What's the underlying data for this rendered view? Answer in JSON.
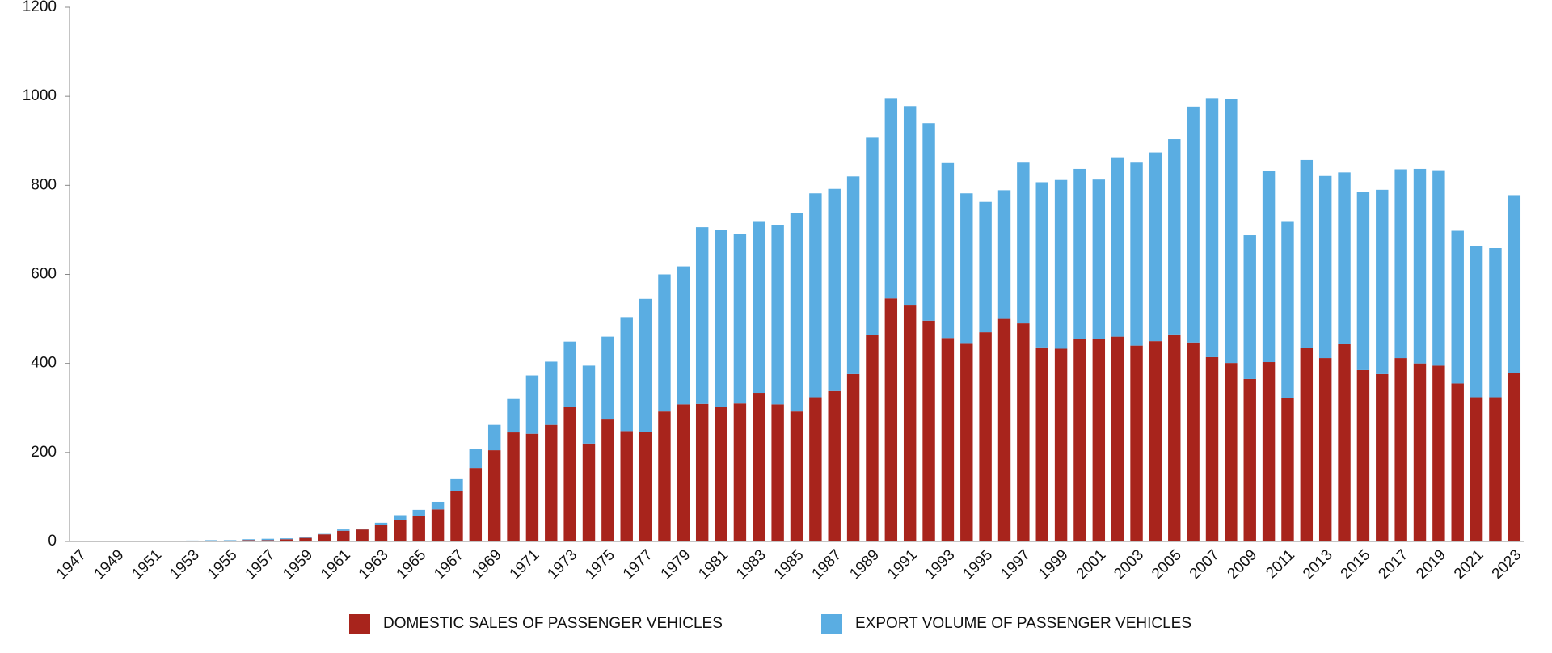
{
  "chart_data": {
    "type": "stacked_bar",
    "categories": [
      "1947",
      null,
      "1949",
      null,
      "1951",
      null,
      "1953",
      null,
      "1955",
      null,
      "1957",
      null,
      "1959",
      null,
      "1961",
      null,
      "1963",
      null,
      "1965",
      null,
      "1967",
      null,
      "1969",
      null,
      "1971",
      null,
      "1973",
      null,
      "1975",
      null,
      "1977",
      null,
      "1979",
      null,
      "1981",
      null,
      "1983",
      null,
      "1985",
      null,
      "1987",
      null,
      "1989",
      null,
      "1991",
      null,
      "1993",
      null,
      "1995",
      null,
      "1997",
      null,
      "1999",
      null,
      "2001",
      null,
      "2003",
      null,
      "2005",
      null,
      "2007",
      null,
      "2009",
      null,
      "2011",
      null,
      "2013",
      null,
      "2015",
      null,
      "2017",
      null,
      "2019",
      null,
      "2021",
      null,
      "2023"
    ],
    "series": [
      {
        "name": "DOMESTIC SALES OF PASSENGER VEHICLES",
        "color": "#a8241c",
        "values": [
          0.3,
          0.5,
          1,
          1,
          1,
          1,
          1,
          2,
          2,
          3,
          3,
          5,
          8,
          16,
          24,
          27,
          37,
          48,
          58,
          72,
          113,
          165,
          205,
          245,
          242,
          262,
          302,
          220,
          274,
          248,
          246,
          292,
          308,
          309,
          302,
          310,
          334,
          308,
          292,
          324,
          338,
          376,
          464,
          546,
          530,
          496,
          457,
          444,
          470,
          500,
          490,
          436,
          433,
          455,
          454,
          460,
          440,
          450,
          465,
          447,
          414,
          401,
          365,
          403,
          323,
          435,
          412,
          443,
          385,
          376,
          412,
          400,
          395,
          355,
          324,
          324,
          378
        ]
      },
      {
        "name": "EXPORT VOLUME OF PASSENGER VEHICLES",
        "color": "#5aade2",
        "values": [
          0,
          0,
          0,
          0,
          0,
          0,
          1,
          1,
          1,
          2,
          3,
          2,
          1,
          1,
          3,
          1,
          5,
          11,
          13,
          17,
          27,
          43,
          57,
          75,
          131,
          142,
          147,
          175,
          186,
          256,
          299,
          308,
          310,
          397,
          398,
          380,
          384,
          402,
          446,
          458,
          454,
          444,
          443,
          450,
          448,
          444,
          393,
          338,
          293,
          289,
          361,
          371,
          379,
          382,
          359,
          403,
          411,
          424,
          439,
          530,
          582,
          593,
          323,
          430,
          395,
          422,
          409,
          386,
          400,
          414,
          424,
          437,
          439,
          343,
          340,
          335,
          400
        ]
      }
    ],
    "ylim": [
      0,
      1200
    ],
    "yticks": [
      0,
      200,
      400,
      600,
      800,
      1000,
      1200
    ],
    "legend": "bottom"
  }
}
